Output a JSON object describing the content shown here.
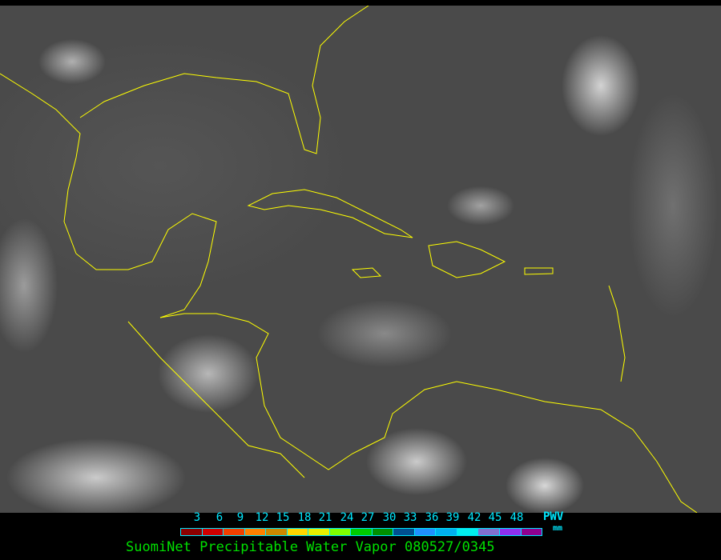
{
  "image": {
    "kind": "satellite-infrared",
    "coastline_color": "#ffff00"
  },
  "legend": {
    "ticks": [
      "3",
      "6",
      "9",
      "12",
      "15",
      "18",
      "21",
      "24",
      "27",
      "30",
      "33",
      "36",
      "39",
      "42",
      "45",
      "48"
    ],
    "colors": [
      "#8b0000",
      "#d00000",
      "#f04000",
      "#ff8000",
      "#cc8800",
      "#ffd700",
      "#e8f000",
      "#80ff00",
      "#00cc00",
      "#009000",
      "#005090",
      "#2090ff",
      "#00b0f0",
      "#00eeee",
      "#8070d0",
      "#9030f0",
      "#900090"
    ],
    "unit_label": "PWV",
    "unit": "mm"
  },
  "title": "SuomiNet Precipitable Water Vapor 080527/0345"
}
